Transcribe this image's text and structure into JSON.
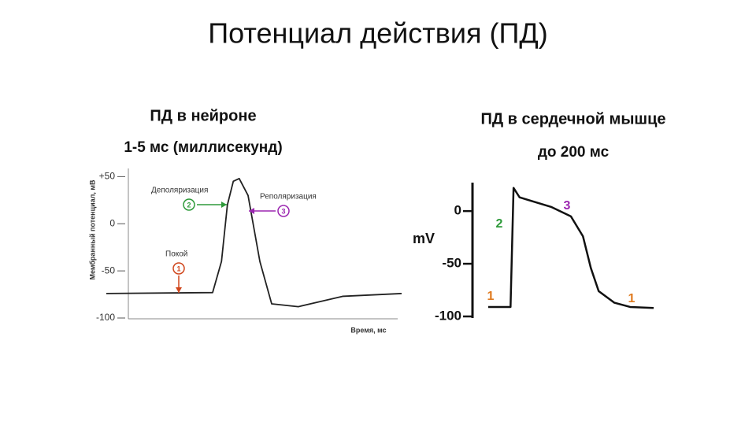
{
  "title": "Потенциал действия (ПД)",
  "chart_data": [
    {
      "type": "line",
      "title": "ПД в нейроне",
      "subtitle": "1-5 мс (миллисекунд)",
      "y_label": "Мембранный потенциал, мВ",
      "x_label": "Время, мс",
      "x": [
        0,
        3.6,
        3.9,
        4.1,
        4.3,
        4.5,
        4.8,
        5.2,
        5.6,
        6.5,
        8,
        10
      ],
      "series": [
        {
          "color": "#222222",
          "values": [
            -74,
            -73,
            -40,
            20,
            45,
            48,
            30,
            -40,
            -85,
            -88,
            -77,
            -74
          ]
        }
      ],
      "xlim": [
        0,
        10
      ],
      "ylim": [
        -100,
        57
      ],
      "yticks": [
        {
          "value": 50,
          "label": "+50"
        },
        0,
        -50,
        -100
      ],
      "annotations": [
        {
          "text": "Деполяризация",
          "marker": "2",
          "color": "#2e9a3a"
        },
        {
          "text": "Реполяризация",
          "marker": "3",
          "color": "#9b27b0"
        },
        {
          "text": "Покой",
          "marker": "1",
          "color": "#d0451b"
        }
      ]
    },
    {
      "type": "line",
      "title": "ПД в сердечной мышце",
      "subtitle": "до 200 мс",
      "y_label": "mV",
      "x": [
        26,
        63,
        68,
        78,
        130,
        163,
        183,
        196,
        209,
        235,
        261,
        300
      ],
      "series": [
        {
          "color": "#111111",
          "values": [
            -91,
            -91,
            22,
            13,
            4,
            -5,
            -24,
            -54,
            -76,
            -87,
            -91,
            -92
          ]
        }
      ],
      "xlim": [
        0,
        300
      ],
      "ylim": [
        -100,
        27
      ],
      "yticks": [
        0,
        -50,
        -100
      ],
      "annotations": [
        {
          "text": "1",
          "color": "#e07b20"
        },
        {
          "text": "2",
          "color": "#2e9a3a"
        },
        {
          "text": "3",
          "color": "#9b27b0"
        },
        {
          "text": "1",
          "color": "#e07b20"
        }
      ]
    }
  ]
}
